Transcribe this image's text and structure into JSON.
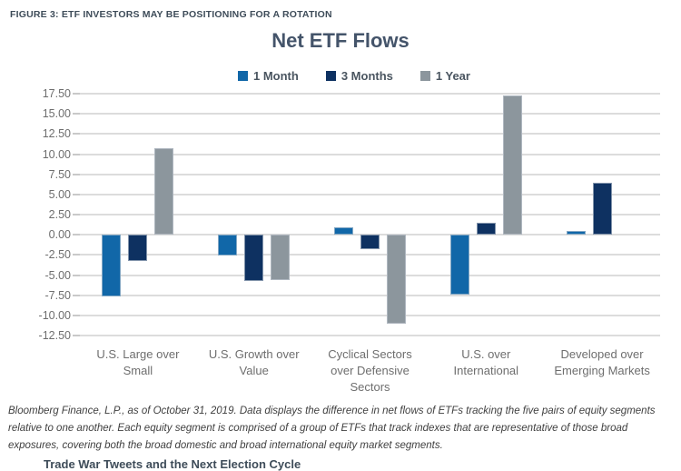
{
  "figure_heading": "FIGURE 3: ETF INVESTORS MAY BE POSITIONING FOR A ROTATION",
  "chart_data": {
    "type": "bar",
    "title": "Net ETF Flows",
    "categories": [
      "U.S. Large over Small",
      "U.S. Growth over Value",
      "Cyclical Sectors over Defensive Sectors",
      "U.S. over International",
      "Developed over Emerging Markets"
    ],
    "series": [
      {
        "name": "1 Month",
        "color": "#1167A8",
        "values": [
          -7.7,
          -2.6,
          0.9,
          -7.4,
          0.5
        ]
      },
      {
        "name": "3 Months",
        "color": "#0E3161",
        "values": [
          -3.2,
          -5.7,
          -1.8,
          1.5,
          6.4
        ]
      },
      {
        "name": "1 Year",
        "color": "#8C969D",
        "values": [
          10.7,
          -5.6,
          -11.0,
          17.3,
          0.0
        ]
      }
    ],
    "ylim": [
      -12.5,
      17.5
    ],
    "yticks": [
      17.5,
      15,
      12.5,
      10,
      7.5,
      5,
      2.5,
      0,
      -2.5,
      -5,
      -7.5,
      -10,
      -12.5
    ],
    "ytick_labels": [
      "17.50",
      "15.00",
      "12.50",
      "10.00",
      "7.50",
      "5.00",
      "2.50",
      "0.00",
      "-2.50",
      "-5.00",
      "-7.50",
      "-10.00",
      "-12.50"
    ],
    "grid": true,
    "legend_position": "top"
  },
  "footnote": "Bloomberg Finance, L.P., as of October 31, 2019. Data displays the difference in net flows of ETFs tracking the five pairs of equity segments relative to one another. Each equity segment is comprised of a group of ETFs that track indexes that are representative of those broad exposures, covering both the broad domestic and broad international equity market segments.",
  "bottom_text": "Trade War Tweets and the Next Election Cycle",
  "colors": {
    "one_month": "#1167A8",
    "three_months": "#0E3161",
    "one_year": "#8C969D",
    "gridline": "#DCDCDC",
    "axis_text": "#6E6E6E",
    "title_text": "#44546A",
    "heading_text": "#3E4C59"
  }
}
